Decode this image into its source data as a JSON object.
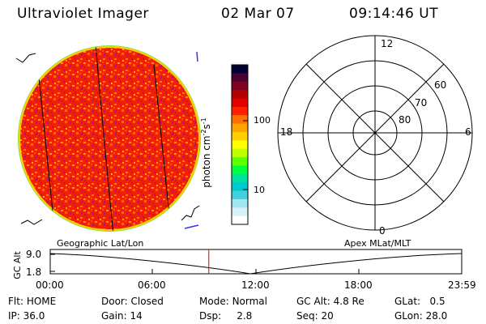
{
  "header": {
    "instrument": "Ultraviolet Imager",
    "date": "02 Mar 07",
    "time": "09:14:46 UT"
  },
  "colorbar": {
    "label": "photon cm",
    "label_exp1": "-2",
    "label_mid": "s",
    "label_exp2": "-1",
    "ticks": [
      "100",
      "10"
    ],
    "colors": [
      "#000033",
      "#4a0030",
      "#800020",
      "#b00000",
      "#e00000",
      "#ff2000",
      "#ff7000",
      "#ffa500",
      "#ffd000",
      "#ffff00",
      "#c0ff00",
      "#60ff00",
      "#00ff40",
      "#00e0a0",
      "#00c8d0",
      "#40d0e0",
      "#a0e8f0",
      "#d8f0f8",
      "#ffffff"
    ]
  },
  "polar": {
    "mlt_labels": {
      "top": "12",
      "left": "18",
      "right": "6",
      "bottom": "0"
    },
    "lat_labels": [
      "60",
      "70",
      "80"
    ]
  },
  "labels": {
    "geo": "Geographic Lat/Lon",
    "apex": "Apex MLat/MLT"
  },
  "alt_plot": {
    "ylabel": "GC Alt",
    "yticks": [
      "9.0",
      "1.8"
    ],
    "xticks": [
      "00:00",
      "06:00",
      "12:00",
      "18:00",
      "23:59"
    ],
    "marker_time": "09:14:46"
  },
  "params": {
    "row1": [
      {
        "label": "Flt:",
        "value": "HOME"
      },
      {
        "label": "Door:",
        "value": "Closed"
      },
      {
        "label": "Mode:",
        "value": "Normal"
      },
      {
        "label": "GC Alt:",
        "value": "4.8 Re"
      },
      {
        "label": "GLat:",
        "value": "0.5"
      }
    ],
    "row2": [
      {
        "label": "IP:",
        "value": "36.0"
      },
      {
        "label": "Gain:",
        "value": "14"
      },
      {
        "label": "Dsp:",
        "value": "2.8"
      },
      {
        "label": "Seq:",
        "value": "20"
      },
      {
        "label": "GLon:",
        "value": "28.0"
      }
    ]
  }
}
